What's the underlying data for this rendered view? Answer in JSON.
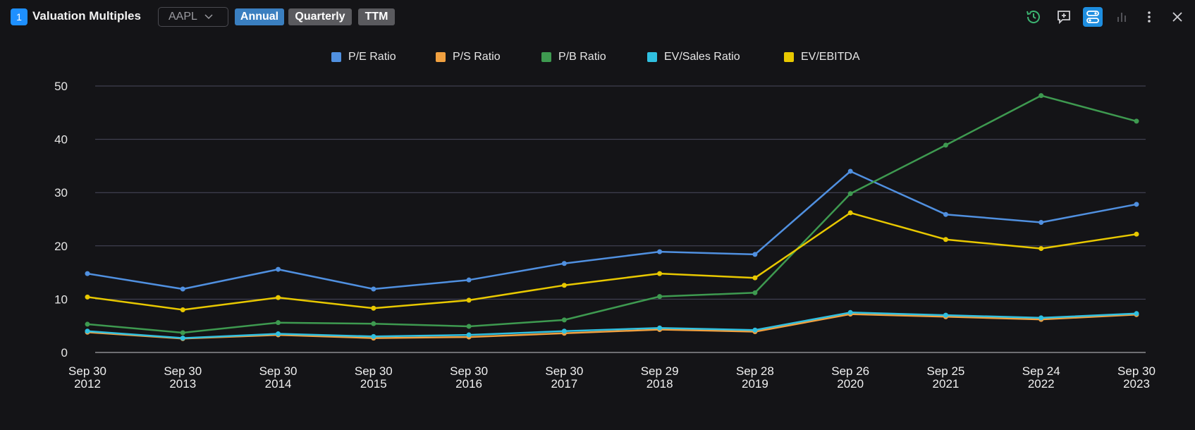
{
  "header": {
    "panel_number": "1",
    "title": "Valuation Multiples",
    "ticker": "AAPL",
    "tabs": [
      {
        "label": "Annual",
        "active": true
      },
      {
        "label": "Quarterly",
        "active": false
      },
      {
        "label": "TTM",
        "active": false
      }
    ],
    "toolbar_icons": [
      "history-icon",
      "comment-add-icon",
      "settings-toggle-icon",
      "bar-chart-icon",
      "more-vertical-icon",
      "close-icon"
    ]
  },
  "colors": {
    "pe": "#5090e0",
    "ps": "#f0a040",
    "pb": "#3e9a50",
    "ev_sales": "#30c0e0",
    "ev_ebitda": "#e8c800",
    "active_tab": "#3a7fc0",
    "accent_icon": "#3cb371",
    "highlight_icon_bg": "#1e8ee0"
  },
  "chart_data": {
    "type": "line",
    "categories": [
      [
        "Sep 30",
        "2012"
      ],
      [
        "Sep 30",
        "2013"
      ],
      [
        "Sep 30",
        "2014"
      ],
      [
        "Sep 30",
        "2015"
      ],
      [
        "Sep 30",
        "2016"
      ],
      [
        "Sep 30",
        "2017"
      ],
      [
        "Sep 29",
        "2018"
      ],
      [
        "Sep 28",
        "2019"
      ],
      [
        "Sep 26",
        "2020"
      ],
      [
        "Sep 25",
        "2021"
      ],
      [
        "Sep 24",
        "2022"
      ],
      [
        "Sep 30",
        "2023"
      ]
    ],
    "yticks": [
      "0",
      "10",
      "20",
      "30",
      "40",
      "50"
    ],
    "ylim": [
      0,
      50
    ],
    "grid": true,
    "legend_position": "top-center",
    "series": [
      {
        "key": "pe",
        "name": "P/E Ratio",
        "values": [
          14.8,
          11.9,
          15.6,
          11.9,
          13.6,
          16.7,
          18.9,
          18.4,
          34.0,
          25.9,
          24.4,
          27.8
        ]
      },
      {
        "key": "ps",
        "name": "P/S Ratio",
        "values": [
          3.8,
          2.6,
          3.3,
          2.7,
          2.9,
          3.6,
          4.3,
          3.9,
          7.2,
          6.7,
          6.2,
          7.1
        ]
      },
      {
        "key": "pb",
        "name": "P/B Ratio",
        "values": [
          5.3,
          3.7,
          5.6,
          5.4,
          4.9,
          6.1,
          10.5,
          11.2,
          29.8,
          38.9,
          48.2,
          43.4
        ]
      },
      {
        "key": "ev_sales",
        "name": "EV/Sales Ratio",
        "values": [
          4.0,
          2.7,
          3.5,
          3.0,
          3.3,
          4.0,
          4.6,
          4.2,
          7.5,
          7.0,
          6.5,
          7.3
        ]
      },
      {
        "key": "ev_ebitda",
        "name": "EV/EBITDA",
        "values": [
          10.4,
          8.0,
          10.3,
          8.3,
          9.8,
          12.6,
          14.8,
          14.0,
          26.2,
          21.2,
          19.5,
          22.2
        ]
      }
    ]
  }
}
